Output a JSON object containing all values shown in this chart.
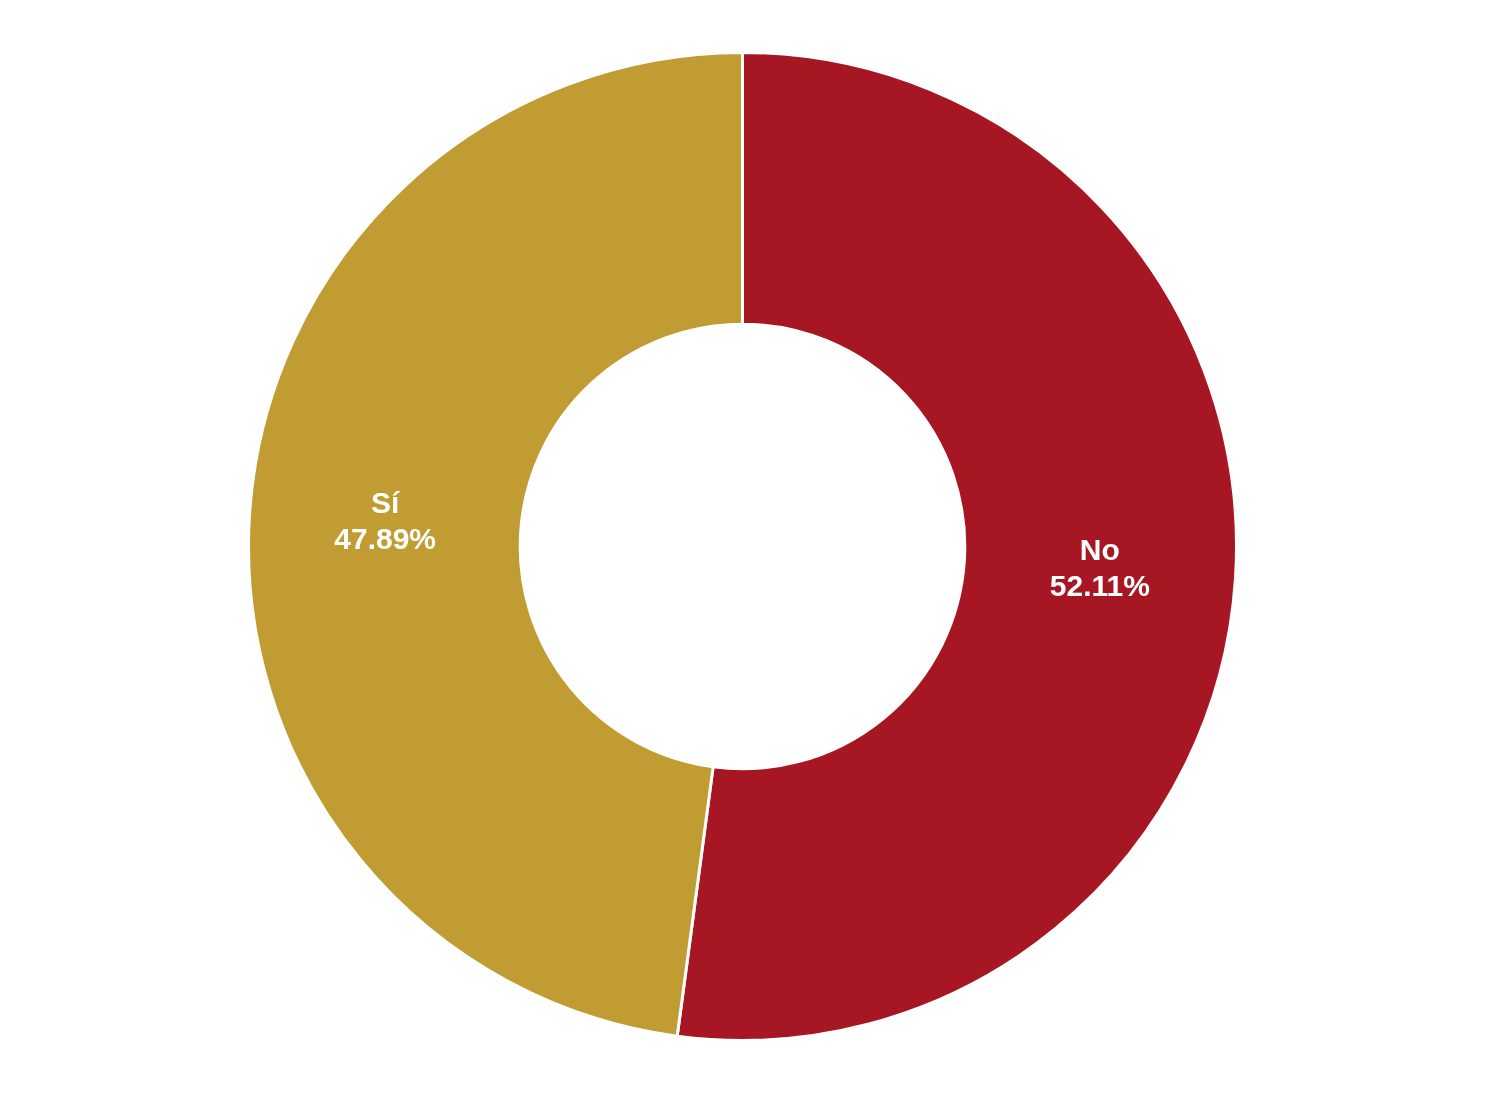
{
  "chart_data": {
    "type": "donut",
    "categories": [
      "No",
      "Sí"
    ],
    "values": [
      52.11,
      47.89
    ],
    "value_labels": [
      "52.11%",
      "47.89%"
    ],
    "colors": [
      "#a61723",
      "#c09c32"
    ],
    "legend": false
  }
}
